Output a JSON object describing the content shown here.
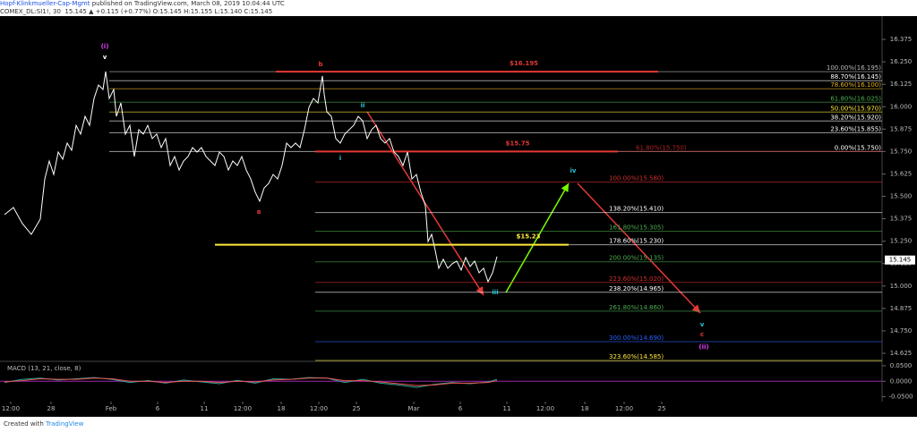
{
  "header": {
    "author": "Hopf-Klinkmueller-Cap-Mgmt",
    "published": " published on TradingView.com, March 08, 2019 10:04:44 UTC",
    "symbol": "COMEX_DL:SI1!, 30  15.145 ▲ +0.115 (+0.77%) O:15.145 H:15.155 L:15.140 C:15.145"
  },
  "footer": {
    "created": "Created with",
    "brand": "TradingView"
  },
  "chart_data": {
    "type": "line",
    "color": "#ffffff",
    "x": [
      0.5,
      1.5,
      2.5,
      3.5,
      4.5,
      5,
      5.5,
      6,
      6.5,
      7,
      7.5,
      8,
      8.5,
      9,
      9.5,
      10,
      10.5,
      11,
      11.5,
      11.8,
      12.2,
      12.7,
      13,
      13.5,
      14,
      14.5,
      15,
      15.5,
      16,
      16.5,
      17,
      17.5,
      18,
      18.5,
      19,
      19.5,
      20,
      20.5,
      21,
      21.5,
      22,
      22.5,
      23,
      23.5,
      24,
      24.5,
      25,
      25.5,
      26,
      26.5,
      27,
      27.5,
      28,
      28.5,
      29,
      29.5,
      30,
      30.5,
      31,
      31.5,
      32,
      32.5,
      33,
      33.5,
      34,
      34.5,
      35,
      35.5,
      36,
      36.2,
      36.5,
      37,
      37.5,
      38,
      38.5,
      39,
      39.5,
      40,
      40.5,
      41,
      41.5,
      42,
      42.5,
      43,
      43.5,
      44,
      44.5,
      45,
      45.5,
      46,
      46.5,
      47,
      47.5,
      47.8,
      48.2,
      48.6,
      49,
      49.5,
      50,
      50.5,
      51,
      51.5,
      52,
      52.5,
      53,
      53.5,
      54,
      54.5,
      55,
      55.5
    ],
    "values": [
      15.398,
      15.438,
      15.348,
      15.288,
      15.373,
      15.597,
      15.697,
      15.622,
      15.747,
      15.707,
      15.797,
      15.757,
      15.896,
      15.847,
      15.946,
      15.896,
      16.046,
      16.121,
      16.096,
      16.196,
      16.046,
      16.096,
      15.946,
      16.021,
      15.847,
      15.896,
      15.722,
      15.872,
      15.847,
      15.896,
      15.822,
      15.847,
      15.772,
      15.822,
      15.672,
      15.722,
      15.647,
      15.697,
      15.722,
      15.772,
      15.747,
      15.772,
      15.722,
      15.697,
      15.672,
      15.747,
      15.722,
      15.647,
      15.697,
      15.672,
      15.722,
      15.647,
      15.597,
      15.523,
      15.473,
      15.547,
      15.572,
      15.622,
      15.597,
      15.672,
      15.797,
      15.772,
      15.797,
      15.772,
      15.872,
      15.996,
      16.046,
      16.021,
      16.171,
      16.071,
      15.971,
      15.946,
      15.822,
      15.797,
      15.847,
      15.872,
      15.896,
      15.946,
      15.921,
      15.822,
      15.872,
      15.896,
      15.822,
      15.797,
      15.822,
      15.747,
      15.722,
      15.672,
      15.747,
      15.597,
      15.622,
      15.523,
      15.448,
      15.248,
      15.288,
      15.199,
      15.099,
      15.149,
      15.099,
      15.124,
      15.139,
      15.089,
      15.159,
      15.109,
      15.139,
      15.074,
      15.099,
      15.024,
      15.074,
      15.164
    ],
    "xlim": [
      0,
      98.5
    ],
    "ylim": [
      14.585,
      16.505
    ],
    "xticks": [
      {
        "value": 1.2,
        "label": "12:00"
      },
      {
        "value": 5.7,
        "label": "28"
      },
      {
        "value": 12.4,
        "label": "Feb"
      },
      {
        "value": 17.6,
        "label": "6"
      },
      {
        "value": 22.8,
        "label": "11"
      },
      {
        "value": 27.1,
        "label": "12:00"
      },
      {
        "value": 31.4,
        "label": "18"
      },
      {
        "value": 35.6,
        "label": "12:00"
      },
      {
        "value": 39.8,
        "label": "25"
      },
      {
        "value": 46.2,
        "label": "Mar"
      },
      {
        "value": 51.4,
        "label": "6"
      },
      {
        "value": 56.6,
        "label": "11"
      },
      {
        "value": 60.9,
        "label": "12:00"
      },
      {
        "value": 65.3,
        "label": "18"
      },
      {
        "value": 69.7,
        "label": "12:00"
      },
      {
        "value": 73.9,
        "label": "25"
      }
    ],
    "yticks": [
      {
        "value": 16.375,
        "label": "16.375"
      },
      {
        "value": 16.25,
        "label": "16.250"
      },
      {
        "value": 16.125,
        "label": "16.125"
      },
      {
        "value": 16,
        "label": "16.000"
      },
      {
        "value": 15.875,
        "label": "15.875"
      },
      {
        "value": 15.75,
        "label": "15.750"
      },
      {
        "value": 15.625,
        "label": "15.625"
      },
      {
        "value": 15.5,
        "label": "15.500"
      },
      {
        "value": 15.375,
        "label": "15.375"
      },
      {
        "value": 15.25,
        "label": "15.250"
      },
      {
        "value": 15.125,
        "label": "15.125"
      },
      {
        "value": 15,
        "label": "15.000"
      },
      {
        "value": 14.875,
        "label": "14.875"
      },
      {
        "value": 14.75,
        "label": "14.750"
      },
      {
        "value": 14.625,
        "label": "14.625"
      }
    ],
    "last_price": 15.145,
    "fib_upper": [
      {
        "label": "100.00%(16.195)",
        "value": 16.195,
        "color": "#bbbbbb"
      },
      {
        "label": "88.70%(16.145)",
        "value": 16.145,
        "color": "#ffffff"
      },
      {
        "label": "78.60%(16.100)",
        "value": 16.1,
        "color": "#e6b422"
      },
      {
        "label": "61.80%(16.025)",
        "value": 16.025,
        "color": "#4caf50"
      },
      {
        "label": "50.00%(15.970)",
        "value": 15.97,
        "color": "#ffeb3b"
      },
      {
        "label": "38.20%(15.920)",
        "value": 15.92,
        "color": "#ffffff"
      },
      {
        "label": "23.60%(15.855)",
        "value": 15.855,
        "color": "#ffffff"
      },
      {
        "label": "0.00%(15.750)",
        "value": 15.75,
        "color": "#ffffff"
      }
    ],
    "fib_lower": [
      {
        "label": "61.80%(15.750)",
        "value": 15.75,
        "color": "#b22222"
      },
      {
        "label": "100.00%(15.580)",
        "value": 15.58,
        "color": "#d32f2f"
      },
      {
        "label": "138.20%(15.410)",
        "value": 15.41,
        "color": "#ffffff"
      },
      {
        "label": "161.80%(15.305)",
        "value": 15.305,
        "color": "#4caf50"
      },
      {
        "label": "178.60%(15.230)",
        "value": 15.23,
        "color": "#ffffff"
      },
      {
        "label": "200.00%(15.135)",
        "value": 15.135,
        "color": "#4caf50"
      },
      {
        "label": "223.60%(15.020)",
        "value": 15.02,
        "color": "#d32f2f"
      },
      {
        "label": "238.20%(14.965)",
        "value": 14.965,
        "color": "#ffffff"
      },
      {
        "label": "261.80%(14.860)",
        "value": 14.86,
        "color": "#4caf50"
      },
      {
        "label": "300.00%(14.690)",
        "value": 14.69,
        "color": "#2962ff"
      },
      {
        "label": "323.60%(14.585)",
        "value": 14.585,
        "color": "#ffeb3b"
      }
    ],
    "price_lines": [
      {
        "label": "$16.195",
        "value": 16.195,
        "color": "#e53935"
      },
      {
        "label": "$15.75",
        "value": 15.75,
        "color": "#e53935"
      },
      {
        "label": "$15.23",
        "value": 15.23,
        "color": "#ffeb3b"
      }
    ],
    "waves": [
      {
        "label": "(i)",
        "color": "#e040fb"
      },
      {
        "label": "v",
        "color": "#ffffff"
      },
      {
        "label": "b",
        "color": "#e53935"
      },
      {
        "label": "a",
        "color": "#e53935"
      },
      {
        "label": "ii",
        "color": "#26c6da"
      },
      {
        "label": "i",
        "color": "#26c6da"
      },
      {
        "label": "iii",
        "color": "#26c6da"
      },
      {
        "label": "iv",
        "color": "#26c6da"
      },
      {
        "label": "v",
        "color": "#26c6da"
      },
      {
        "label": "c",
        "color": "#e53935"
      },
      {
        "label": "(ii)",
        "color": "#e040fb"
      }
    ],
    "macd": {
      "title": "MACD (13, 21, close, 8)",
      "ylim": [
        -0.0657,
        0.0614
      ],
      "yticks": [
        {
          "value": 0.05,
          "label": "0.0500"
        },
        {
          "value": 0,
          "label": "0.0000"
        },
        {
          "value": -0.05,
          "label": "-0.0500"
        }
      ],
      "x": [
        0.5,
        2.5,
        4.5,
        6.5,
        8.5,
        10.5,
        12.5,
        14.5,
        16.5,
        18.5,
        20.5,
        22.5,
        24.5,
        26.5,
        28.5,
        30.5,
        32.5,
        34.5,
        36.5,
        38.5,
        40.5,
        42.5,
        44.5,
        46.5,
        48.5,
        50.5,
        52.5,
        54.5,
        55.5
      ],
      "series": [
        {
          "color": "#26a69a",
          "values": [
            -0.004,
            0.006,
            0.01,
            0.004,
            0.008,
            0.012,
            0.006,
            -0.004,
            0.002,
            -0.006,
            0.004,
            -0.002,
            -0.008,
            0.003,
            -0.006,
            0.008,
            0.006,
            0.012,
            0.01,
            -0.004,
            0.006,
            -0.006,
            -0.012,
            -0.02,
            -0.01,
            -0.004,
            -0.008,
            -0.002,
            0.006
          ]
        },
        {
          "color": "#ef5350",
          "values": [
            -0.002,
            0.002,
            0.008,
            0.006,
            0.006,
            0.01,
            0.008,
            0.0,
            0.0,
            -0.004,
            0.0,
            0.0,
            -0.004,
            0.0,
            -0.002,
            0.004,
            0.006,
            0.01,
            0.01,
            0.002,
            0.002,
            -0.002,
            -0.008,
            -0.014,
            -0.012,
            -0.006,
            -0.006,
            -0.004,
            0.002
          ]
        }
      ]
    }
  }
}
